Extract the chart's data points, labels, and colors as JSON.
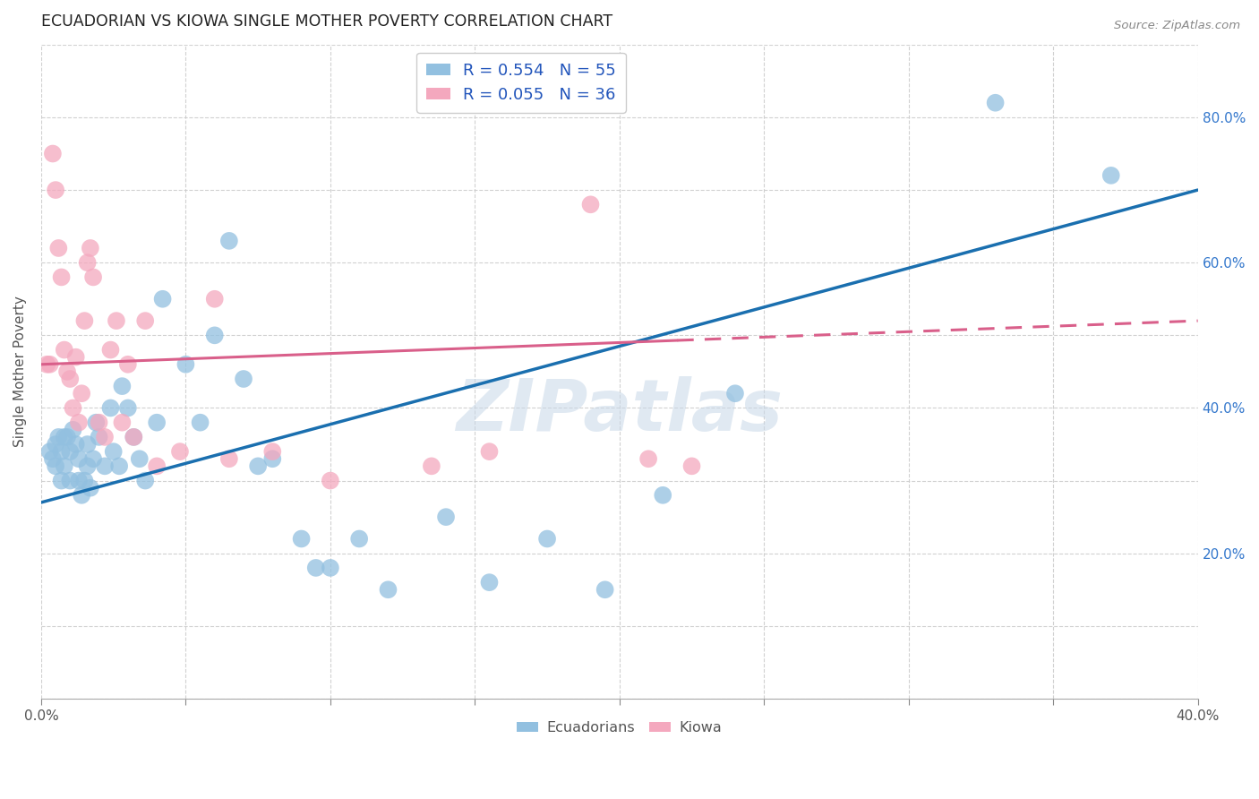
{
  "title": "ECUADORIAN VS KIOWA SINGLE MOTHER POVERTY CORRELATION CHART",
  "source": "Source: ZipAtlas.com",
  "ylabel": "Single Mother Poverty",
  "xlim": [
    0.0,
    0.4
  ],
  "ylim": [
    0.0,
    0.9
  ],
  "ecuadorians_R": 0.554,
  "ecuadorians_N": 55,
  "kiowa_R": 0.055,
  "kiowa_N": 36,
  "blue_color": "#92c0e0",
  "pink_color": "#f4a8be",
  "blue_line_color": "#1a6faf",
  "pink_line_color": "#d95f8a",
  "blue_scatter_edge": "none",
  "pink_scatter_edge": "none",
  "legend_label_blue": "Ecuadorians",
  "legend_label_pink": "Kiowa",
  "watermark": "ZIPatlas",
  "background_color": "#ffffff",
  "ecuadorians_x": [
    0.003,
    0.004,
    0.005,
    0.005,
    0.006,
    0.007,
    0.007,
    0.008,
    0.008,
    0.009,
    0.01,
    0.01,
    0.011,
    0.012,
    0.013,
    0.013,
    0.014,
    0.015,
    0.016,
    0.016,
    0.017,
    0.018,
    0.019,
    0.02,
    0.022,
    0.024,
    0.025,
    0.027,
    0.028,
    0.03,
    0.032,
    0.034,
    0.036,
    0.04,
    0.042,
    0.05,
    0.055,
    0.06,
    0.065,
    0.07,
    0.075,
    0.08,
    0.09,
    0.095,
    0.1,
    0.11,
    0.12,
    0.14,
    0.155,
    0.175,
    0.195,
    0.215,
    0.24,
    0.33,
    0.37
  ],
  "ecuadorians_y": [
    0.34,
    0.33,
    0.35,
    0.32,
    0.36,
    0.34,
    0.3,
    0.36,
    0.32,
    0.36,
    0.34,
    0.3,
    0.37,
    0.35,
    0.33,
    0.3,
    0.28,
    0.3,
    0.35,
    0.32,
    0.29,
    0.33,
    0.38,
    0.36,
    0.32,
    0.4,
    0.34,
    0.32,
    0.43,
    0.4,
    0.36,
    0.33,
    0.3,
    0.38,
    0.55,
    0.46,
    0.38,
    0.5,
    0.63,
    0.44,
    0.32,
    0.33,
    0.22,
    0.18,
    0.18,
    0.22,
    0.15,
    0.25,
    0.16,
    0.22,
    0.15,
    0.28,
    0.42,
    0.82,
    0.72
  ],
  "kiowa_x": [
    0.002,
    0.003,
    0.004,
    0.005,
    0.006,
    0.007,
    0.008,
    0.009,
    0.01,
    0.011,
    0.012,
    0.013,
    0.014,
    0.015,
    0.016,
    0.017,
    0.018,
    0.02,
    0.022,
    0.024,
    0.026,
    0.028,
    0.03,
    0.032,
    0.036,
    0.04,
    0.048,
    0.06,
    0.065,
    0.08,
    0.1,
    0.135,
    0.155,
    0.19,
    0.21,
    0.225
  ],
  "kiowa_y": [
    0.46,
    0.46,
    0.75,
    0.7,
    0.62,
    0.58,
    0.48,
    0.45,
    0.44,
    0.4,
    0.47,
    0.38,
    0.42,
    0.52,
    0.6,
    0.62,
    0.58,
    0.38,
    0.36,
    0.48,
    0.52,
    0.38,
    0.46,
    0.36,
    0.52,
    0.32,
    0.34,
    0.55,
    0.33,
    0.34,
    0.3,
    0.32,
    0.34,
    0.68,
    0.33,
    0.32
  ],
  "blue_line_x0": 0.0,
  "blue_line_x1": 0.4,
  "blue_line_y0": 0.27,
  "blue_line_y1": 0.7,
  "pink_line_x0": 0.0,
  "pink_line_x1": 0.4,
  "pink_line_y0": 0.46,
  "pink_line_y1": 0.52
}
